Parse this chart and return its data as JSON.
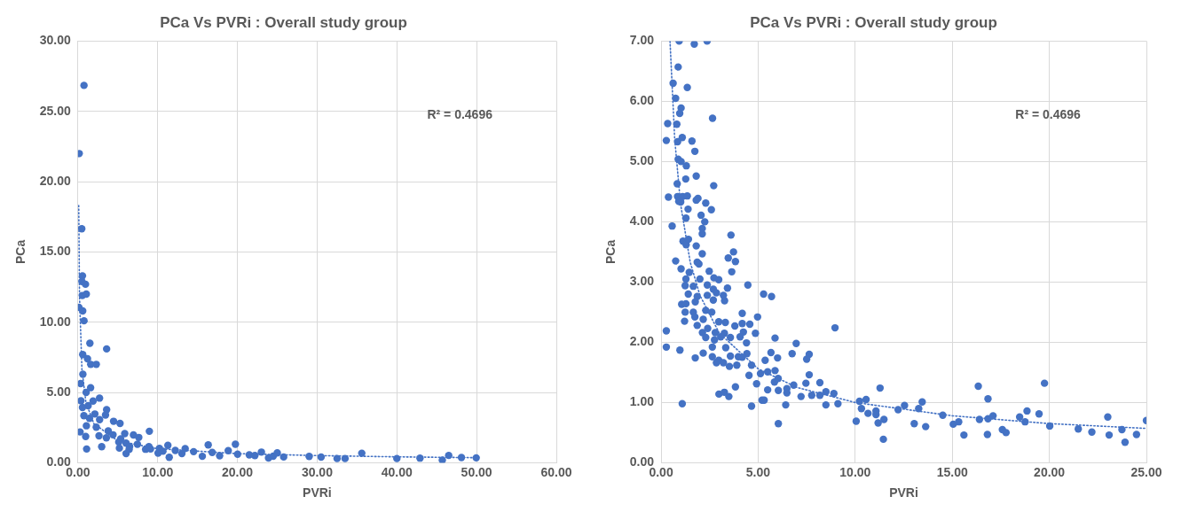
{
  "chart_data": [
    {
      "type": "scatter",
      "title": "PCa Vs PVRi : Overall study group",
      "xlabel": "PVRi",
      "ylabel": "PCa",
      "annotations": [
        "R² = 0.4696"
      ],
      "xlim": [
        0,
        60
      ],
      "xticks": [
        {
          "value": 0,
          "label": "0.00"
        },
        {
          "value": 10,
          "label": "10.00"
        },
        {
          "value": 20,
          "label": "20.00"
        },
        {
          "value": 30,
          "label": "30.00"
        },
        {
          "value": 40,
          "label": "40.00"
        },
        {
          "value": 50,
          "label": "50.00"
        },
        {
          "value": 60,
          "label": "60.00"
        }
      ],
      "ylim": [
        0,
        30
      ],
      "yticks": [
        {
          "value": 0,
          "label": "0.00"
        },
        {
          "value": 5,
          "label": "5.00"
        },
        {
          "value": 10,
          "label": "10.00"
        },
        {
          "value": 15,
          "label": "15.00"
        },
        {
          "value": 20,
          "label": "20.00"
        },
        {
          "value": 25,
          "label": "25.00"
        },
        {
          "value": 30,
          "label": "30.00"
        }
      ],
      "grid": true,
      "marker": "circle",
      "series": [
        {
          "color": "#4472c4",
          "x": [
            0.76,
            0.16,
            0.48,
            0.57,
            0.5,
            0.95,
            0.55,
            1.05,
            0.12,
            0.6,
            0.76,
            1.5,
            3.6,
            0.6,
            1.2,
            1.6,
            2.3,
            25.8,
            29.0,
            30.5,
            32.5,
            33.5,
            35.6,
            40.0,
            42.9,
            45.7,
            46.5,
            48.1,
            49.95,
            0.62,
            0.34,
            1.59,
            1.03,
            2.71,
            0.38,
            1.9,
            1.28,
            3.6,
            0.57,
            2.12,
            0.75,
            3.46,
            1.45,
            2.72,
            4.47,
            0.27,
            1.06,
            2.3,
            3.8,
            0.97,
            2.64,
            3.57,
            1.09,
            2.98,
            4.4,
            5.28,
            8.96,
            5.87,
            6.96,
            7.63,
            5.36,
            5.12,
            6.03,
            7.46,
            6.48,
            5.2,
            8.49,
            9.11,
            8.9,
            6.04,
            6.42,
            10.05,
            10.22,
            10.66,
            11.28,
            11.45,
            12.21,
            13.04,
            13.45,
            14.51,
            15.6,
            16.34,
            16.84,
            17.77,
            18.85,
            19.75,
            20.02,
            21.49,
            22.19,
            23.01,
            23.9,
            24.49,
            25.0
          ],
          "values": [
            26.85,
            22.0,
            16.65,
            13.3,
            12.9,
            12.7,
            11.9,
            12.0,
            11.05,
            10.8,
            10.1,
            8.5,
            8.1,
            7.7,
            7.4,
            7.0,
            7.0,
            0.41,
            0.45,
            0.4,
            0.3,
            0.3,
            0.68,
            0.3,
            0.33,
            0.18,
            0.52,
            0.37,
            0.35,
            6.3,
            5.63,
            5.34,
            5.0,
            4.6,
            4.41,
            4.39,
            4.06,
            3.78,
            3.93,
            3.47,
            3.35,
            3.4,
            3.16,
            3.07,
            2.95,
            2.19,
            2.63,
            2.53,
            2.27,
            1.87,
            1.92,
            1.77,
            0.98,
            1.14,
            1.99,
            2.8,
            2.24,
            2.07,
            1.98,
            1.8,
            1.7,
            1.48,
            1.4,
            1.32,
            1.16,
            1.04,
            0.96,
            0.98,
            1.15,
            0.65,
            0.96,
            0.69,
            1.02,
            0.82,
            1.24,
            0.39,
            0.88,
            0.65,
            1.01,
            0.79,
            0.46,
            1.27,
            0.73,
            0.5,
            0.86,
            1.32,
            0.61,
            0.56,
            0.51,
            0.76,
            0.34,
            0.47,
            0.7
          ]
        },
        {
          "type": "line",
          "color": "#4472c4",
          "marker": "none",
          "line_style": "dotted",
          "x": [
            0.1,
            0.2,
            0.5,
            1,
            2,
            5,
            10,
            20,
            30,
            40,
            50
          ],
          "values": [
            18.3,
            11.8,
            6.65,
            4.3,
            2.78,
            1.56,
            1.0,
            0.65,
            0.51,
            0.42,
            0.36
          ]
        }
      ]
    },
    {
      "type": "scatter",
      "title": "PCa Vs PVRi : Overall study group",
      "xlabel": "PVRi",
      "ylabel": "PCa",
      "annotations": [
        "R² = 0.4696"
      ],
      "xlim": [
        0,
        25
      ],
      "xticks": [
        {
          "value": 0,
          "label": "0.00"
        },
        {
          "value": 5,
          "label": "5.00"
        },
        {
          "value": 10,
          "label": "10.00"
        },
        {
          "value": 15,
          "label": "15.00"
        },
        {
          "value": 20,
          "label": "20.00"
        },
        {
          "value": 25,
          "label": "25.00"
        }
      ],
      "ylim": [
        0,
        7
      ],
      "yticks": [
        {
          "value": 0,
          "label": "0.00"
        },
        {
          "value": 1,
          "label": "1.00"
        },
        {
          "value": 2,
          "label": "2.00"
        },
        {
          "value": 3,
          "label": "3.00"
        },
        {
          "value": 4,
          "label": "4.00"
        },
        {
          "value": 5,
          "label": "5.00"
        },
        {
          "value": 6,
          "label": "6.00"
        },
        {
          "value": 7,
          "label": "7.00"
        }
      ],
      "grid": true,
      "marker": "circle",
      "series": [
        {
          "color": "#4472c4",
          "x": [
            0.93,
            1.71,
            2.37,
            0.88,
            0.62,
            1.35,
            0.75,
            1.03,
            0.96,
            0.34,
            0.81,
            2.65,
            0.27,
            0.85,
            1.09,
            1.59,
            1.74,
            0.88,
            1.03,
            1.3,
            1.81,
            2.71,
            1.27,
            0.83,
            0.38,
            0.85,
            1.11,
            1.35,
            1.9,
            0.91,
            1.01,
            1.81,
            2.3,
            2.59,
            1.39,
            2.06,
            1.28,
            2.25,
            2.12,
            2.12,
            0.57,
            3.6,
            1.13,
            1.29,
            1.41,
            1.81,
            2.12,
            3.73,
            3.46,
            3.83,
            0.75,
            1.86,
            1.95,
            1.03,
            1.45,
            2.48,
            3.64,
            1.28,
            2.0,
            2.72,
            2.97,
            2.38,
            1.24,
            1.66,
            1.4,
            2.69,
            2.85,
            3.21,
            3.42,
            4.47,
            5.28,
            5.69,
            1.86,
            2.38,
            2.69,
            3.27,
            1.06,
            1.28,
            1.76,
            1.24,
            1.66,
            2.3,
            2.61,
            1.21,
            1.74,
            2.17,
            2.97,
            3.31,
            3.8,
            4.18,
            4.18,
            4.57,
            4.97,
            1.86,
            2.4,
            2.13,
            2.79,
            3.26,
            4.24,
            4.86,
            0.27,
            2.3,
            3.07,
            3.57,
            4.07,
            5.87,
            8.96,
            2.75,
            2.64,
            3.33,
            0.27,
            0.97,
            4.4,
            6.96,
            1.76,
            2.17,
            3.57,
            3.98,
            4.42,
            5.66,
            6.75,
            7.63,
            2.64,
            2.97,
            2.85,
            3.21,
            3.52,
            3.9,
            4.18,
            5.36,
            6.0,
            7.5,
            4.66,
            5.12,
            5.49,
            5.87,
            4.53,
            4.92,
            5.84,
            6.03,
            6.48,
            6.83,
            7.21,
            7.46,
            7.63,
            3.83,
            2.98,
            3.26,
            3.49,
            5.49,
            6.04,
            6.48,
            7.76,
            8.18,
            8.18,
            8.49,
            8.9,
            8.49,
            9.11,
            5.2,
            5.31,
            6.42,
            4.66,
            1.09,
            6.04,
            10.05,
            10.22,
            10.56,
            10.32,
            10.66,
            11.07,
            11.07,
            11.18,
            11.28,
            11.45,
            11.48,
            12.21,
            12.54,
            13.04,
            13.27,
            13.45,
            13.63,
            14.51,
            15.05,
            15.33,
            15.6,
            16.34,
            16.4,
            16.84,
            16.84,
            17.1,
            16.81,
            17.58,
            17.77,
            18.47,
            18.75,
            18.85,
            19.47,
            19.75,
            20.02,
            21.49,
            22.19,
            23.01,
            23.08,
            23.74,
            23.9,
            24.49,
            25.0
          ],
          "values": [
            7.0,
            6.95,
            7.0,
            6.57,
            6.3,
            6.23,
            6.05,
            5.89,
            5.8,
            5.63,
            5.62,
            5.72,
            5.35,
            5.33,
            5.4,
            5.34,
            5.17,
            5.04,
            5.0,
            4.93,
            4.76,
            4.6,
            4.71,
            4.63,
            4.41,
            4.42,
            4.42,
            4.43,
            4.39,
            4.34,
            4.33,
            4.36,
            4.31,
            4.2,
            4.21,
            4.11,
            4.06,
            4.0,
            3.89,
            3.8,
            3.93,
            3.78,
            3.68,
            3.62,
            3.71,
            3.6,
            3.47,
            3.5,
            3.4,
            3.34,
            3.35,
            3.33,
            3.3,
            3.22,
            3.16,
            3.18,
            3.17,
            3.05,
            3.05,
            3.07,
            3.04,
            2.95,
            2.94,
            2.93,
            2.8,
            2.88,
            2.82,
            2.78,
            2.9,
            2.95,
            2.8,
            2.76,
            2.76,
            2.78,
            2.7,
            2.69,
            2.63,
            2.64,
            2.67,
            2.5,
            2.5,
            2.53,
            2.5,
            2.35,
            2.42,
            2.38,
            2.34,
            2.33,
            2.27,
            2.48,
            2.31,
            2.3,
            2.42,
            2.28,
            2.23,
            2.16,
            2.16,
            2.15,
            2.17,
            2.15,
            2.19,
            2.08,
            2.09,
            2.08,
            2.09,
            2.07,
            2.24,
            2.04,
            1.92,
            1.91,
            1.92,
            1.87,
            1.99,
            1.98,
            1.74,
            1.82,
            1.77,
            1.76,
            1.81,
            1.83,
            1.81,
            1.8,
            1.76,
            1.7,
            1.66,
            1.66,
            1.6,
            1.62,
            1.75,
            1.7,
            1.74,
            1.72,
            1.62,
            1.48,
            1.51,
            1.53,
            1.45,
            1.31,
            1.34,
            1.4,
            1.23,
            1.29,
            1.1,
            1.32,
            1.46,
            1.26,
            1.14,
            1.17,
            1.1,
            1.21,
            1.2,
            1.16,
            1.12,
            1.33,
            1.12,
            1.18,
            1.15,
            0.96,
            0.98,
            1.04,
            1.04,
            0.96,
            0.94,
            0.98,
            0.65,
            0.69,
            1.02,
            1.05,
            0.9,
            0.82,
            0.8,
            0.86,
            0.66,
            1.24,
            0.39,
            0.72,
            0.88,
            0.95,
            0.65,
            0.9,
            1.01,
            0.6,
            0.79,
            0.64,
            0.68,
            0.46,
            1.27,
            0.72,
            1.06,
            0.73,
            0.78,
            0.47,
            0.55,
            0.5,
            0.76,
            0.68,
            0.86,
            0.81,
            1.32,
            0.61,
            0.56,
            0.51,
            0.76,
            0.46,
            0.55,
            0.34,
            0.47,
            0.7
          ]
        },
        {
          "type": "line",
          "color": "#4472c4",
          "marker": "none",
          "line_style": "dotted",
          "x": [
            0.46,
            0.7,
            1,
            1.5,
            2,
            3,
            5,
            7,
            10,
            15,
            20,
            25
          ],
          "values": [
            7.0,
            5.38,
            4.3,
            3.33,
            2.78,
            2.15,
            1.56,
            1.25,
            1.0,
            0.78,
            0.65,
            0.57
          ]
        }
      ]
    }
  ]
}
